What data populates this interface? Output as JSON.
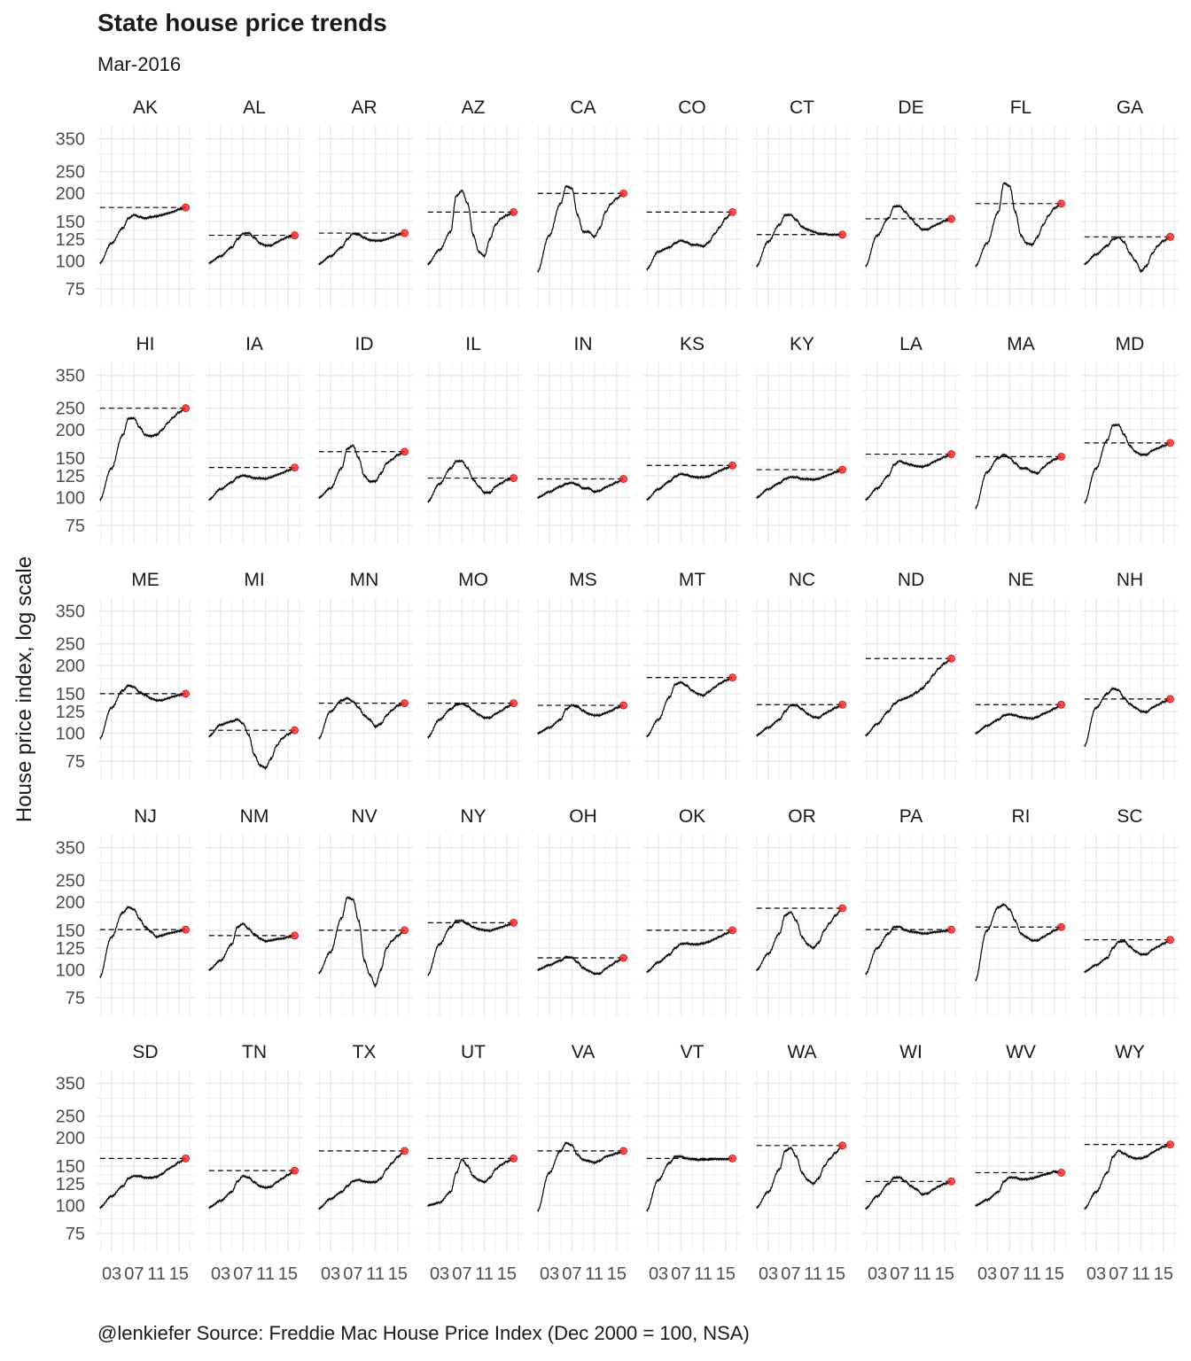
{
  "title": "State house price trends",
  "subtitle": "Mar-2016",
  "caption": "@lenkiefer Source: Freddie Mac House Price Index (Dec 2000 = 100, NSA)",
  "colors": {
    "line": "#000000",
    "point": "#ff3333",
    "grid": "#ebebeb",
    "reference_line": "#000000"
  },
  "chart_data": {
    "type": "line",
    "title": "State house price trends",
    "subtitle": "Mar-2016",
    "xlabel": "",
    "ylabel": "House price index, log scale",
    "y_scale": "log",
    "y_ticks": [
      75,
      100,
      125,
      150,
      200,
      250,
      350
    ],
    "ylim": [
      62,
      400
    ],
    "x_tick_labels": [
      "03",
      "07",
      "11",
      "15"
    ],
    "xlim": [
      2000.3,
      2017.7
    ],
    "grid": true,
    "facet_by": "state",
    "knot_years": [
      2000.9,
      2003,
      2005,
      2006,
      2007,
      2008,
      2009,
      2010,
      2011,
      2012,
      2013,
      2014,
      2015,
      2016.2
    ],
    "reference": "dashed horizontal line at the Mar-2016 value, red point marks latest value",
    "series": [
      {
        "name": "AK",
        "values": [
          98,
          120,
          140,
          155,
          160,
          157,
          155,
          157,
          158,
          160,
          163,
          166,
          170,
          173
        ]
      },
      {
        "name": "AL",
        "values": [
          98,
          105,
          115,
          125,
          132,
          133,
          127,
          120,
          117,
          117,
          121,
          125,
          128,
          130
        ]
      },
      {
        "name": "AR",
        "values": [
          97,
          105,
          115,
          125,
          132,
          131,
          127,
          124,
          123,
          123,
          125,
          128,
          131,
          133
        ]
      },
      {
        "name": "AZ",
        "values": [
          97,
          112,
          135,
          195,
          205,
          180,
          130,
          110,
          105,
          125,
          145,
          155,
          160,
          165
        ]
      },
      {
        "name": "CA",
        "values": [
          90,
          130,
          180,
          215,
          210,
          160,
          135,
          135,
          128,
          140,
          165,
          180,
          190,
          200
        ]
      },
      {
        "name": "CO",
        "values": [
          92,
          110,
          115,
          120,
          123,
          121,
          118,
          118,
          116,
          121,
          132,
          142,
          155,
          165
        ]
      },
      {
        "name": "CT",
        "values": [
          95,
          122,
          145,
          160,
          160,
          152,
          142,
          138,
          135,
          132,
          132,
          131,
          131,
          131
        ]
      },
      {
        "name": "DE",
        "values": [
          95,
          130,
          155,
          175,
          175,
          165,
          155,
          145,
          138,
          138,
          143,
          147,
          151,
          154
        ]
      },
      {
        "name": "FL",
        "values": [
          95,
          120,
          165,
          222,
          215,
          165,
          130,
          120,
          118,
          128,
          145,
          160,
          172,
          180
        ]
      },
      {
        "name": "GA",
        "values": [
          97,
          107,
          117,
          125,
          127,
          121,
          108,
          100,
          90,
          95,
          108,
          117,
          123,
          128
        ]
      },
      {
        "name": "HI",
        "values": [
          98,
          135,
          190,
          225,
          225,
          205,
          190,
          188,
          190,
          200,
          215,
          228,
          240,
          250
        ]
      },
      {
        "name": "IA",
        "values": [
          98,
          109,
          117,
          123,
          125,
          124,
          122,
          122,
          121,
          123,
          126,
          129,
          132,
          136
        ]
      },
      {
        "name": "ID",
        "values": [
          100,
          110,
          135,
          165,
          170,
          150,
          125,
          118,
          118,
          128,
          142,
          148,
          155,
          160
        ]
      },
      {
        "name": "IL",
        "values": [
          96,
          115,
          135,
          145,
          145,
          135,
          120,
          112,
          105,
          105,
          112,
          116,
          120,
          122
        ]
      },
      {
        "name": "IN",
        "values": [
          100,
          106,
          112,
          115,
          116,
          114,
          110,
          110,
          106,
          107,
          111,
          114,
          117,
          121
        ]
      },
      {
        "name": "KS",
        "values": [
          98,
          109,
          118,
          124,
          127,
          126,
          124,
          123,
          123,
          124,
          128,
          132,
          135,
          139
        ]
      },
      {
        "name": "KY",
        "values": [
          100,
          109,
          116,
          121,
          123,
          123,
          121,
          121,
          120,
          121,
          124,
          127,
          130,
          133
        ]
      },
      {
        "name": "LA",
        "values": [
          98,
          110,
          125,
          140,
          145,
          142,
          140,
          138,
          137,
          139,
          144,
          148,
          152,
          156
        ]
      },
      {
        "name": "MA",
        "values": [
          90,
          130,
          150,
          155,
          150,
          142,
          135,
          135,
          130,
          128,
          136,
          143,
          148,
          152
        ]
      },
      {
        "name": "MD",
        "values": [
          95,
          135,
          180,
          210,
          210,
          190,
          170,
          160,
          155,
          155,
          162,
          166,
          170,
          175
        ]
      },
      {
        "name": "ME",
        "values": [
          95,
          130,
          155,
          163,
          160,
          152,
          148,
          143,
          140,
          140,
          143,
          146,
          148,
          150
        ]
      },
      {
        "name": "MI",
        "values": [
          97,
          109,
          113,
          115,
          110,
          98,
          80,
          72,
          70,
          77,
          88,
          95,
          99,
          103
        ]
      },
      {
        "name": "MN",
        "values": [
          95,
          125,
          140,
          143,
          138,
          130,
          120,
          115,
          107,
          110,
          120,
          127,
          133,
          136
        ]
      },
      {
        "name": "MO",
        "values": [
          96,
          115,
          128,
          134,
          135,
          132,
          126,
          121,
          117,
          117,
          122,
          126,
          131,
          136
        ]
      },
      {
        "name": "MS",
        "values": [
          100,
          106,
          115,
          128,
          133,
          131,
          126,
          122,
          120,
          120,
          123,
          126,
          130,
          133
        ]
      },
      {
        "name": "MT",
        "values": [
          97,
          115,
          145,
          165,
          168,
          163,
          155,
          150,
          147,
          153,
          160,
          167,
          172,
          177
        ]
      },
      {
        "name": "NC",
        "values": [
          98,
          106,
          115,
          125,
          133,
          133,
          128,
          122,
          118,
          117,
          122,
          126,
          130,
          134
        ]
      },
      {
        "name": "ND",
        "values": [
          98,
          110,
          125,
          135,
          140,
          143,
          147,
          152,
          158,
          168,
          182,
          195,
          205,
          215
        ]
      },
      {
        "name": "NE",
        "values": [
          100,
          108,
          115,
          120,
          121,
          120,
          118,
          117,
          116,
          118,
          122,
          125,
          129,
          134
        ]
      },
      {
        "name": "NH",
        "values": [
          88,
          130,
          150,
          158,
          155,
          143,
          135,
          130,
          125,
          124,
          130,
          134,
          138,
          142
        ]
      },
      {
        "name": "NJ",
        "values": [
          93,
          140,
          180,
          190,
          185,
          168,
          155,
          148,
          140,
          142,
          145,
          147,
          149,
          151
        ]
      },
      {
        "name": "NM",
        "values": [
          100,
          110,
          130,
          155,
          160,
          152,
          144,
          138,
          134,
          135,
          137,
          138,
          140,
          142
        ]
      },
      {
        "name": "NV",
        "values": [
          97,
          120,
          170,
          210,
          205,
          165,
          110,
          95,
          85,
          100,
          125,
          135,
          142,
          150
        ]
      },
      {
        "name": "NY",
        "values": [
          95,
          130,
          155,
          165,
          165,
          160,
          155,
          152,
          150,
          149,
          152,
          155,
          158,
          162
        ]
      },
      {
        "name": "OH",
        "values": [
          100,
          105,
          110,
          114,
          113,
          108,
          102,
          99,
          96,
          96,
          101,
          105,
          109,
          113
        ]
      },
      {
        "name": "OK",
        "values": [
          98,
          108,
          117,
          125,
          130,
          131,
          130,
          130,
          131,
          133,
          137,
          141,
          145,
          150
        ]
      },
      {
        "name": "OR",
        "values": [
          100,
          118,
          145,
          175,
          180,
          165,
          140,
          130,
          125,
          132,
          150,
          162,
          175,
          188
        ]
      },
      {
        "name": "PA",
        "values": [
          96,
          125,
          145,
          155,
          155,
          150,
          148,
          147,
          145,
          145,
          147,
          148,
          149,
          151
        ]
      },
      {
        "name": "RI",
        "values": [
          90,
          150,
          190,
          195,
          185,
          165,
          145,
          140,
          135,
          135,
          140,
          145,
          150,
          155
        ]
      },
      {
        "name": "SC",
        "values": [
          98,
          105,
          113,
          125,
          133,
          134,
          127,
          121,
          117,
          117,
          123,
          127,
          131,
          136
        ]
      },
      {
        "name": "SD",
        "values": [
          98,
          110,
          122,
          132,
          135,
          135,
          133,
          133,
          134,
          138,
          145,
          150,
          156,
          162
        ]
      },
      {
        "name": "TN",
        "values": [
          98,
          105,
          115,
          128,
          135,
          133,
          127,
          122,
          120,
          121,
          127,
          132,
          137,
          143
        ]
      },
      {
        "name": "TX",
        "values": [
          97,
          107,
          115,
          122,
          128,
          130,
          128,
          127,
          127,
          132,
          145,
          155,
          165,
          175
        ]
      },
      {
        "name": "UT",
        "values": [
          100,
          103,
          115,
          140,
          160,
          150,
          135,
          130,
          127,
          133,
          145,
          152,
          157,
          162
        ]
      },
      {
        "name": "VA",
        "values": [
          95,
          140,
          175,
          190,
          185,
          168,
          160,
          158,
          155,
          158,
          165,
          168,
          171,
          175
        ]
      },
      {
        "name": "VT",
        "values": [
          95,
          130,
          155,
          165,
          165,
          162,
          161,
          160,
          160,
          160,
          161,
          161,
          161,
          162
        ]
      },
      {
        "name": "WA",
        "values": [
          98,
          115,
          145,
          175,
          180,
          165,
          140,
          130,
          125,
          132,
          150,
          162,
          172,
          185
        ]
      },
      {
        "name": "WI",
        "values": [
          97,
          110,
          125,
          133,
          133,
          128,
          122,
          118,
          112,
          113,
          118,
          122,
          125,
          128
        ]
      },
      {
        "name": "WV",
        "values": [
          100,
          106,
          115,
          128,
          133,
          133,
          131,
          131,
          132,
          134,
          137,
          139,
          142,
          140
        ]
      },
      {
        "name": "WY",
        "values": [
          97,
          115,
          140,
          165,
          175,
          170,
          165,
          162,
          162,
          165,
          172,
          178,
          183,
          187
        ]
      }
    ]
  }
}
